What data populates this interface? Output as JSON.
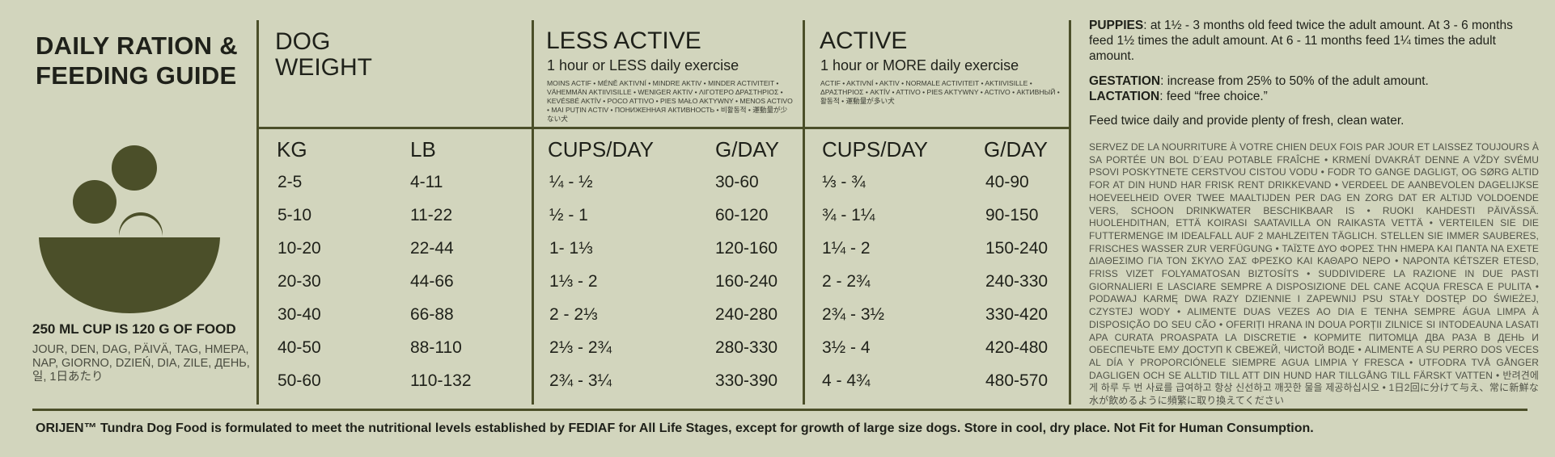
{
  "guide": {
    "title_line1": "DAILY RATION &",
    "title_line2": "FEEDING GUIDE",
    "cup_note": "250 ML CUP IS 120 G OF FOOD",
    "day_words": "JOUR, DEN, DAG, PÄIVÄ, TAG, ΗΜΕΡΑ, NAP, GIORNO, DZIEŃ, DIA, ZILE, ДЕНЬ, 일, 1日あたり"
  },
  "columns": {
    "dog_weight": {
      "line1": "DOG",
      "line2": "WEIGHT",
      "kg_label": "KG",
      "lb_label": "LB"
    },
    "less_active": {
      "title": "LESS ACTIVE",
      "subtitle": "1 hour or LESS daily exercise",
      "translations": "MOINS ACTIF • MÉNĚ AKTIVNÍ • MINDRE AKTIV • MINDER ACTIVITEIT • VÄHEMMÄN AKTIIVISILLE • WENIGER AKTIV • ΛΙΓΟΤΕΡΟ ΔΡΑΣΤΗΡΙΟΣ • KEVÉSBÉ AKTÍV • POCO ATTIVO • PIES MAŁO AKTYWNY • MENOS ACTIVO • MAI PUȚIN ACTIV • ПОНИЖЕННАЯ АКТИВНОСТЬ • 비활동적 • 運動量が少ない犬",
      "cups_label": "CUPS/DAY",
      "g_label": "G/DAY"
    },
    "active": {
      "title": "ACTIVE",
      "subtitle": "1 hour or MORE daily exercise",
      "translations": "ACTIF • AKTIVNÍ • AKTIV • NORMALE ACTIVITEIT • AKTIIVISILLE • ΔΡΑΣΤΗΡΙΟΣ • AKTÍV • ATTIVO • PIES AKTYWNY • ACTIVO • АКТИВНЫЙ • 활동적 • 運動量が多い犬",
      "cups_label": "CUPS/DAY",
      "g_label": "G/DAY"
    }
  },
  "rows": [
    {
      "kg": "2-5",
      "lb": "4-11",
      "less_cups": "¼ - ½",
      "less_g": "30-60",
      "active_cups": "⅓ - ¾",
      "active_g": "40-90"
    },
    {
      "kg": "5-10",
      "lb": "11-22",
      "less_cups": "½ - 1",
      "less_g": "60-120",
      "active_cups": "¾ - 1¼",
      "active_g": "90-150"
    },
    {
      "kg": "10-20",
      "lb": "22-44",
      "less_cups": "1- 1⅓",
      "less_g": "120-160",
      "active_cups": "1¼ - 2",
      "active_g": "150-240"
    },
    {
      "kg": "20-30",
      "lb": "44-66",
      "less_cups": "1⅓ - 2",
      "less_g": "160-240",
      "active_cups": "2 - 2¾",
      "active_g": "240-330"
    },
    {
      "kg": "30-40",
      "lb": "66-88",
      "less_cups": "2 - 2⅓",
      "less_g": "240-280",
      "active_cups": "2¾ - 3½",
      "active_g": "330-420"
    },
    {
      "kg": "40-50",
      "lb": "88-110",
      "less_cups": "2⅓ - 2¾",
      "less_g": "280-330",
      "active_cups": "3½ - 4",
      "active_g": "420-480"
    },
    {
      "kg": "50-60",
      "lb": "110-132",
      "less_cups": "2¾ - 3¼",
      "less_g": "330-390",
      "active_cups": "4 - 4¾",
      "active_g": "480-570"
    }
  ],
  "info": {
    "puppies_label": "PUPPIES",
    "puppies_text": ": at 1½ - 3 months old feed twice the adult amount. At  3 - 6 months feed 1½ times the adult amount. At 6 - 11 months feed 1¼ times the adult amount.",
    "gestation_label": "GESTATION",
    "gestation_text": ": increase from 25% to 50% of the adult amount.",
    "lactation_label": "LACTATION",
    "lactation_text": ": feed “free choice.”",
    "feed_note": "Feed twice daily and provide plenty of fresh, clean water.",
    "multilingual": "SERVEZ DE LA NOURRITURE À VOTRE CHIEN DEUX FOIS PAR JOUR ET LAISSEZ TOUJOURS À SA PORTÉE UN BOL D´EAU POTABLE FRAÎCHE • KRMENÍ DVAKRÁT DENNE A VŽDY SVÉMU PSOVI POSKYTNETE CERSTVOU CISTOU VODU • FODR TO GANGE DAGLIGT, OG SØRG ALTID FOR AT DIN HUND HAR FRISK RENT DRIKKEVAND • VERDEEL DE AANBEVOLEN DAGELIJKSE HOEVEELHEID OVER TWEE MAALTIJDEN PER DAG EN ZORG DAT ER ALTIJD VOLDOENDE VERS, SCHOON DRINKWATER BESCHIKBAAR IS • RUOKI KAHDESTI PÄIVÄSSÄ. HUOLEHDITHAN, ETTÄ KOIRASI SAATAVILLA ON RAIKASTA VETTÄ • VERTEILEN SIE DIE FUTTERMENGE IM IDEALFALL AUF 2 MAHLZEITEN TÄGLICH. STELLEN SIE IMMER SAUBERES, FRISCHES WASSER ZUR VERFÜGUNG • ΤΑΪΣΤΕ ΔΥΟ ΦΟΡΕΣ ΤΗΝ ΗΜΕΡΑ ΚΑΙ ΠΑΝΤΑ ΝΑ ΕΧΕΤΕ ΔΙΑΘΕΣΙΜΟ ΓΙΑ ΤΟΝ ΣΚΥΛΟ ΣΑΣ ΦΡΕΣΚΟ ΚΑΙ ΚΑΘΑΡΟ ΝΕΡΟ • NAPONTA KÉTSZER ETESD, FRISS VIZET FOLYAMATOSAN BIZTOSÍTS • SUDDIVIDERE LA RAZIONE IN DUE PASTI GIORNALIERI E LASCIARE SEMPRE A DISPOSIZIONE DEL CANE ACQUA FRESCA E PULITA • PODAWAJ KARMĘ DWA RAZY DZIENNIE I ZAPEWNIJ PSU STAŁY DOSTĘP DO ŚWIEŻEJ, CZYSTEJ WODY • ALIMENTE DUAS VEZES AO DIA E TENHA SEMPRE ÁGUA LIMPA À DISPOSIÇÃO DO SEU CÃO • OFERIȚI HRANA IN DOUA PORȚII ZILNICE SI INTODEAUNA LASATI APA CURATA PROASPATA LA DISCRETIE • КОРМИТЕ ПИТОМЦА ДВА РАЗА В ДЕНЬ И ОБЕСПЕЧЬТЕ ЕМУ ДОСТУП К СВЕЖЕЙ, ЧИСТОЙ ВОДЕ • ALIMENTE A SU PERRO DOS VECES AL DÍA Y PROPORCIÓNELE SIEMPRE AGUA LIMPIA Y FRESCA • UTFODRA TVÅ GÅNGER DAGLIGEN OCH SE ALLTID TILL ATT DIN HUND HAR TILLGÅNG TILL FÄRSKT VATTEN • 반려견에게 하루 두 번 사료를 급여하고 항상 신선하고 깨끗한 물을 제공하십시오 • 1日2回に分けて与え、常に新鮮な水が飲めるように頻繁に取り換えてください"
  },
  "footer": "ORIJEN™ Tundra Dog Food is formulated to meet the nutritional levels established by FEDIAF for All Life Stages, except for growth of large size dogs. Store in cool, dry place. Not Fit for Human Consumption.",
  "colors": {
    "background": "#d2d5bd",
    "accent": "#4b4f29",
    "text": "#1f211a"
  },
  "icons": [
    "food-bowl-icon"
  ]
}
